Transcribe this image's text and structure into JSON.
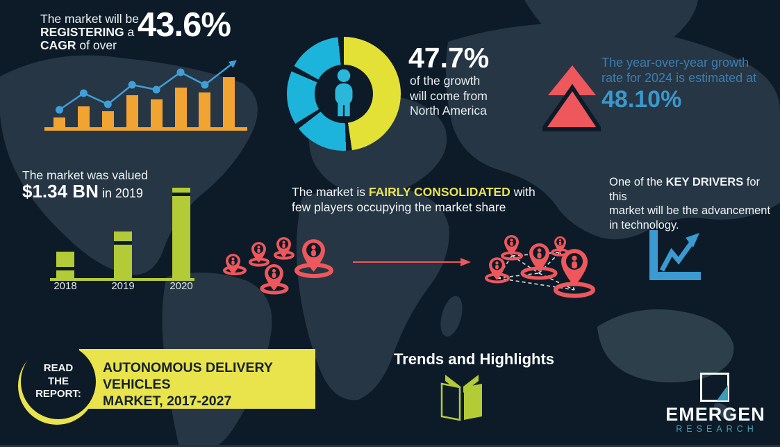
{
  "palette": {
    "background": "#0d1b28",
    "map_land": "#263644",
    "orange": "#f2a433",
    "trend_line_blue": "#3f9fd8",
    "donut_cyan": "#1cb4da",
    "donut_yellow": "#e4e136",
    "red": "#ee575c",
    "yoy_text_blue": "#3d7db2",
    "yoy_value_blue": "#3b98cd",
    "green": "#b3cb37",
    "banner_yellow": "#e9e34c",
    "dark_text": "#15222e",
    "logo_teal": "#4aa0b5",
    "white": "#ffffff"
  },
  "cagr_block": {
    "line1": "The market will be",
    "line2_bold": "REGISTERING",
    "line2_rest": " a",
    "line3_bold": "CAGR",
    "line3_rest": " of over",
    "value": "43.6%"
  },
  "na_block": {
    "value": "47.7%",
    "lines": [
      "of the growth",
      "will come from",
      "North America"
    ]
  },
  "yoy_block": {
    "line1": "The year-over-year growth",
    "line2": "rate for 2024 is estimated at",
    "value": "48.10%"
  },
  "value_block": {
    "line1": "The market was valued",
    "value_bold": "$1.34 BN",
    "value_rest": " in 2019"
  },
  "consolidation_block": {
    "pre": "The market is ",
    "highlight": "FAIRLY CONSOLIDATED",
    "post": " with",
    "line2": "few players occupying the market share"
  },
  "drivers_block": {
    "pre": "One of the ",
    "bold": "KEY DRIVERS",
    "post": " for this",
    "line2": "market will be the advancement",
    "line3": "in technology."
  },
  "report_block": {
    "circle_line1": "READ",
    "circle_line2": "THE",
    "circle_line3": "REPORT:",
    "banner_line1": "AUTONOMOUS DELIVERY VEHICLES",
    "banner_line2": "MARKET, 2017-2027"
  },
  "trends_block": {
    "title": "Trends and Highlights"
  },
  "brand": {
    "name": "EMERGEN",
    "sub": "RESEARCH"
  },
  "icons": {
    "person-icon": "person silhouette in donut center",
    "double-up-arrow-icon": "two stacked red upward triangles",
    "location-pin-icon": "red map pin with person glyph",
    "growth-chart-icon": "blue axis with zig-zag up arrow",
    "book-icon": "green open book",
    "trend-arrow-icon": "blue polyline with arrow over bars",
    "logo-square-icon": "white outlined square with teal corner notch"
  },
  "chart_data": [
    {
      "id": "cagr-trend",
      "type": "bar",
      "title": "Illustrative rising market bars with trend line (unlabeled)",
      "values": [
        14,
        30,
        23,
        46,
        40,
        57,
        50,
        72
      ],
      "line_values": [
        25,
        49,
        33,
        61,
        54,
        79,
        61
      ],
      "arrow_end_value": 91,
      "unit": "relative height (px)",
      "bar_color": "#f2a433",
      "line_color": "#3f9fd8",
      "grid": false
    },
    {
      "id": "north-america-share",
      "type": "pie",
      "labels": [
        "North America",
        "Rest of world"
      ],
      "values": [
        47.7,
        52.3
      ],
      "colors": [
        "#e4e136",
        "#1cb4da"
      ],
      "center_icon": "person-icon",
      "annotation": "47.7% of the growth will come from North America"
    },
    {
      "id": "market-value-by-year",
      "type": "bar",
      "categories": [
        "2018",
        "2019",
        "2020"
      ],
      "values": [
        38,
        67,
        130
      ],
      "stripe_offsets": [
        22,
        14,
        7
      ],
      "unit": "relative height (px), unlabeled axis",
      "annotation": "2019 market value = $1.34 BN",
      "bar_color": "#b3cb37",
      "grid": false
    }
  ]
}
